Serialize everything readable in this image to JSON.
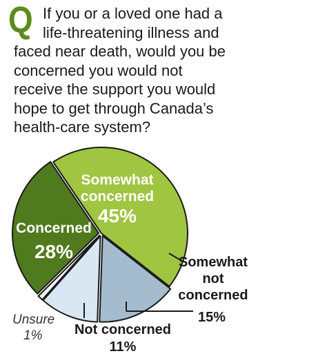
{
  "question": {
    "marker": "Q",
    "lines": [
      "If you or a loved one had a",
      "life-threatening illness and",
      "faced near death, would you be",
      "concerned you would not",
      "receive the support you would",
      "hope to get through Canada’s",
      "health-care system?"
    ]
  },
  "colors": {
    "accent_green": "#5b8c1c",
    "somewhat_concerned": "#9fc541",
    "concerned": "#4f7a1e",
    "somewhat_not_concerned": "#a4bccd",
    "not_concerned": "#d8e7f2",
    "unsure": "#f2f2f2",
    "outline": "#1a1a1a"
  },
  "chart_data": {
    "type": "pie",
    "title": "",
    "slices": [
      {
        "label": "Somewhat concerned",
        "value": 45,
        "value_label": "45%"
      },
      {
        "label": "Somewhat not concerned",
        "value": 15,
        "value_label": "15%"
      },
      {
        "label": "Not concerned",
        "value": 11,
        "value_label": "11%"
      },
      {
        "label": "Unsure",
        "value": 1,
        "value_label": "1%"
      },
      {
        "label": "Concerned",
        "value": 28,
        "value_label": "28%"
      }
    ],
    "label_lines": {
      "somewhat_concerned": [
        "Somewhat",
        "concerned",
        "45%"
      ],
      "concerned": [
        "Concerned",
        "28%"
      ],
      "somewhat_not_concerned": [
        "Somewhat",
        "not",
        "concerned",
        "15%"
      ],
      "not_concerned": [
        "Not concerned",
        "11%"
      ],
      "unsure": [
        "Unsure",
        "1%"
      ]
    }
  }
}
